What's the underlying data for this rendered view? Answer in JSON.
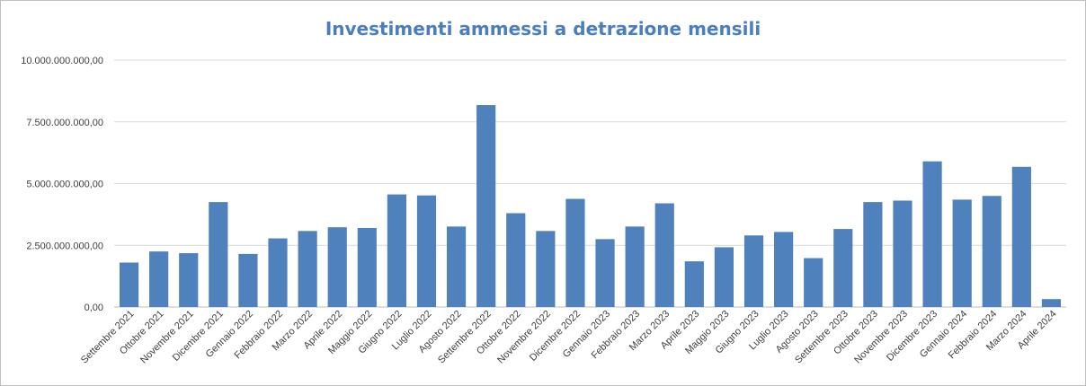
{
  "chart_data": {
    "type": "bar",
    "title": "Investimenti ammessi a detrazione mensili",
    "xlabel": "",
    "ylabel": "",
    "ylim": [
      0,
      10000000000
    ],
    "yticks": [
      0,
      2500000000,
      5000000000,
      7500000000,
      10000000000
    ],
    "ytick_labels": [
      "0,00",
      "2.500.000.000,00",
      "5.000.000.000,00",
      "7.500.000.000,00",
      "10.000.000.000,00"
    ],
    "grid": "horizontal",
    "legend": "none",
    "bar_color": "#4f81bd",
    "categories": [
      "Settembre 2021",
      "Ottobre 2021",
      "Novembre 2021",
      "Dicembre 2021",
      "Gennaio 2022",
      "Febbraio 2022",
      "Marzo 2022",
      "Aprile 2022",
      "Maggio 2022",
      "Giugno 2022",
      "Luglio 2022",
      "Agosto 2022",
      "Settembre 2022",
      "Ottobre 2022",
      "Novembre 2022",
      "Dicembre 2022",
      "Gennaio 2023",
      "Febbraio 2023",
      "Marzo 2023",
      "Aprile 2023",
      "Maggio 2023",
      "Giugno 2023",
      "Luglio 2023",
      "Agosto 2023",
      "Settembre 2023",
      "Ottobre 2023",
      "Novembre 2023",
      "Dicembre 2023",
      "Gennaio 2024",
      "Febbraio 2024",
      "Marzo 2024",
      "Aprile 2024"
    ],
    "values": [
      1800000000,
      2250000000,
      2180000000,
      4250000000,
      2150000000,
      2780000000,
      3080000000,
      3230000000,
      3200000000,
      4560000000,
      4520000000,
      3260000000,
      8180000000,
      3800000000,
      3080000000,
      4380000000,
      2750000000,
      3260000000,
      4200000000,
      1850000000,
      2420000000,
      2900000000,
      3040000000,
      1980000000,
      3160000000,
      4250000000,
      4310000000,
      5900000000,
      4350000000,
      4500000000,
      5680000000,
      320000000
    ]
  }
}
